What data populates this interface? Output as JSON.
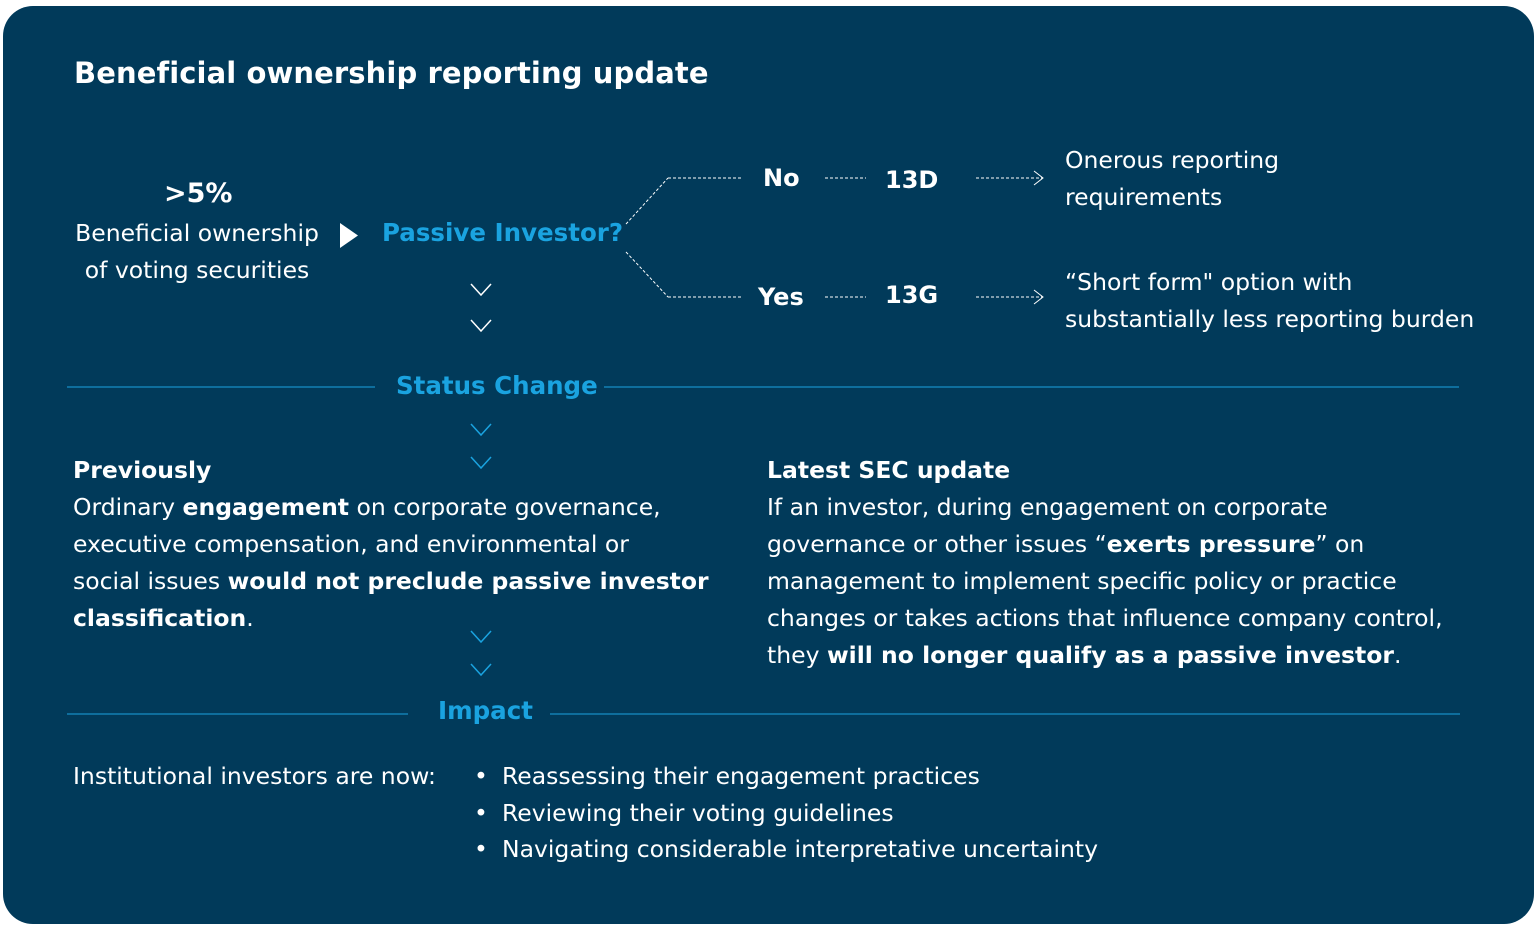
{
  "title": "Beneficial ownership reporting update",
  "threshold": {
    "value": ">5%",
    "line1": "Beneficial ownership",
    "line2": "of voting securities"
  },
  "question": "Passive Investor?",
  "branches": [
    {
      "answer": "No",
      "form": "13D",
      "result_line1": "Onerous reporting",
      "result_line2": "requirements"
    },
    {
      "answer": "Yes",
      "form": "13G",
      "result_line1": "“Short form\" option with",
      "result_line2": "substantially less reporting burden"
    }
  ],
  "status_change": {
    "label": "Status Change",
    "previously": {
      "heading": "Previously",
      "p1": "Ordinary ",
      "b1": "engagement",
      "p2": " on corporate governance,",
      "p3": "executive compensation, and environmental or",
      "p4": "social issues ",
      "b2": "would not preclude passive investor",
      "b3": "classification",
      "p5": "."
    },
    "latest": {
      "heading": "Latest SEC update",
      "l1": "If an investor, during engagement on corporate",
      "l2a": "governance or other issues “",
      "l2b": "exerts pressure",
      "l2c": "” on",
      "l3": "management to implement specific policy or practice",
      "l4": "changes or takes actions that influence company control,",
      "l5a": "they ",
      "l5b": "will no longer qualify as a passive investor",
      "l5c": "."
    }
  },
  "impact": {
    "label": "Impact",
    "lead": "Institutional investors are now:",
    "bullets": [
      "Reassessing their engagement practices",
      "Reviewing their voting guidelines",
      "Navigating considerable interpretative uncertainty"
    ]
  },
  "colors": {
    "background": "#013a5a",
    "accent": "#1aa3e0",
    "text": "#ffffff"
  }
}
